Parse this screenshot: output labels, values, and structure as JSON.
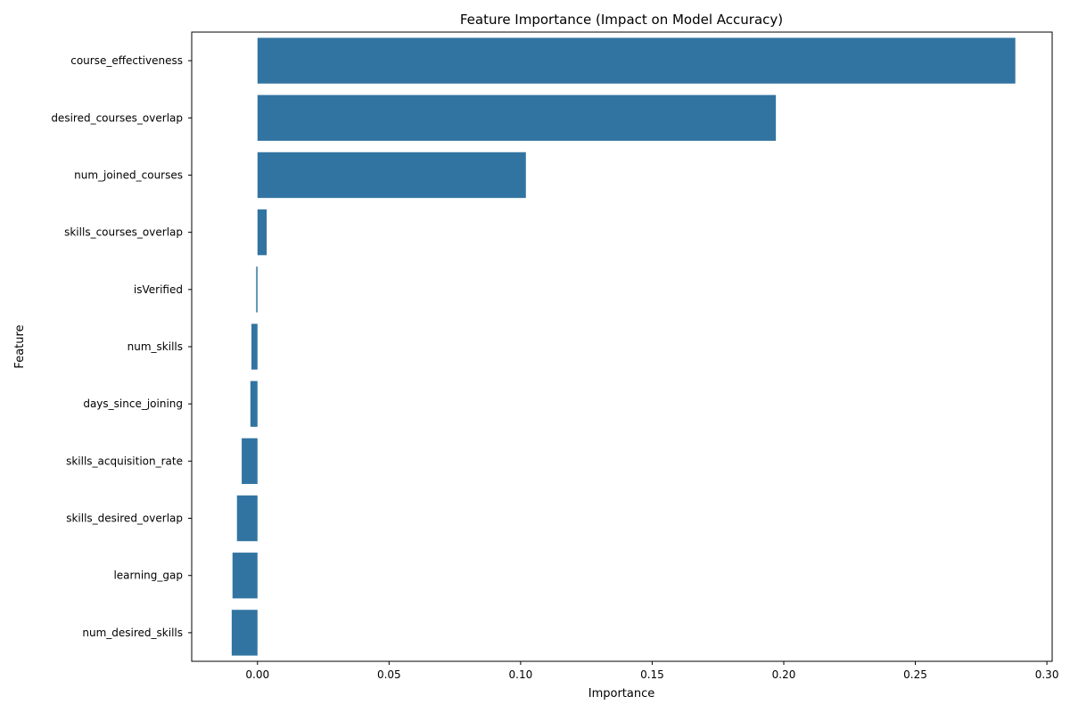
{
  "chart_data": {
    "type": "bar",
    "orientation": "horizontal",
    "title": "Feature Importance (Impact on Model Accuracy)",
    "xlabel": "Importance",
    "ylabel": "Feature",
    "xlim": [
      -0.025,
      0.302
    ],
    "xticks": [
      "0.00",
      "0.05",
      "0.10",
      "0.15",
      "0.20",
      "0.25",
      "0.30"
    ],
    "xtick_values": [
      0.0,
      0.05,
      0.1,
      0.15,
      0.2,
      0.25,
      0.3
    ],
    "grid": false,
    "bar_color": "#3274a1",
    "categories": [
      "course_effectiveness",
      "desired_courses_overlap",
      "num_joined_courses",
      "skills_courses_overlap",
      "isVerified",
      "num_skills",
      "days_since_joining",
      "skills_acquisition_rate",
      "skills_desired_overlap",
      "learning_gap",
      "num_desired_skills"
    ],
    "values": [
      0.288,
      0.197,
      0.102,
      0.0035,
      -0.0005,
      -0.0023,
      -0.0027,
      -0.006,
      -0.0078,
      -0.0095,
      -0.0098
    ]
  }
}
